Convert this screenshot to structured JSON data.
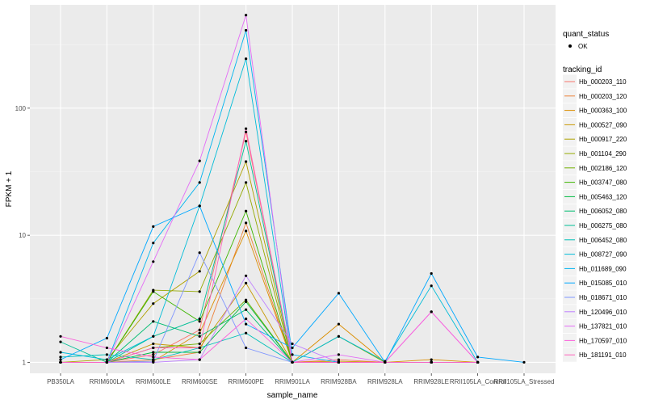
{
  "chart_data": {
    "type": "line",
    "xlabel": "sample_name",
    "ylabel": "FPKM + 1",
    "y_scale": "log10",
    "ylim": [
      0.82,
      650
    ],
    "y_ticks": [
      {
        "value": 1,
        "label": "1"
      },
      {
        "value": 10,
        "label": "10"
      },
      {
        "value": 100,
        "label": "100"
      }
    ],
    "categories": [
      "PB350LA",
      "RRIM600LA",
      "RRIM600LE",
      "RRIM600SE",
      "RRIM600PE",
      "RRIM901LA",
      "RRIM928BA",
      "RRIM928LA",
      "RRIM928LE",
      "RRII105LA_Control",
      "RRII105LA_Stressed"
    ],
    "quant_legend": {
      "title": "quant_status",
      "label": "OK"
    },
    "series_legend_title": "tracking_id",
    "series": [
      {
        "name": "Hb_000203_110",
        "color": "#F8766D",
        "values": [
          1.0,
          1.0,
          1.15,
          1.8,
          65,
          1.0,
          1.05,
          1.0,
          1.0,
          1.0,
          null
        ]
      },
      {
        "name": "Hb_000203_120",
        "color": "#EC8239",
        "values": [
          1.0,
          1.0,
          1.05,
          1.2,
          12.5,
          1.0,
          1.0,
          1.0,
          1.0,
          1.0,
          null
        ]
      },
      {
        "name": "Hb_000363_100",
        "color": "#DB8E00",
        "values": [
          1.0,
          1.0,
          1.02,
          1.7,
          10.8,
          1.0,
          2.0,
          1.0,
          1.05,
          1.0,
          null
        ]
      },
      {
        "name": "Hb_000527_090",
        "color": "#C79800",
        "values": [
          1.0,
          1.0,
          1.4,
          1.3,
          4.2,
          1.0,
          1.02,
          1.0,
          1.0,
          1.0,
          null
        ]
      },
      {
        "name": "Hb_000917_220",
        "color": "#AFA100",
        "values": [
          1.0,
          1.05,
          2.9,
          5.2,
          38,
          1.0,
          1.0,
          1.0,
          1.0,
          1.0,
          null
        ]
      },
      {
        "name": "Hb_001104_290",
        "color": "#94A900",
        "values": [
          1.0,
          1.0,
          3.7,
          3.6,
          26,
          1.0,
          1.0,
          1.0,
          1.0,
          1.0,
          null
        ]
      },
      {
        "name": "Hb_002186_120",
        "color": "#72B000",
        "values": [
          1.0,
          1.0,
          1.3,
          1.4,
          3.1,
          1.0,
          1.6,
          1.0,
          1.0,
          1.0,
          null
        ]
      },
      {
        "name": "Hb_003747_080",
        "color": "#3DB600",
        "values": [
          1.0,
          1.0,
          3.6,
          2.1,
          15.5,
          1.0,
          1.0,
          1.0,
          1.0,
          1.0,
          null
        ]
      },
      {
        "name": "Hb_005463_120",
        "color": "#00BA42",
        "values": [
          1.0,
          1.0,
          1.2,
          1.2,
          3.0,
          1.0,
          1.0,
          1.0,
          1.0,
          1.0,
          null
        ]
      },
      {
        "name": "Hb_006052_080",
        "color": "#00BD70",
        "values": [
          1.0,
          1.0,
          2.1,
          1.6,
          2.6,
          1.0,
          1.0,
          1.0,
          1.0,
          1.0,
          null
        ]
      },
      {
        "name": "Hb_006275_080",
        "color": "#00BF96",
        "values": [
          1.45,
          1.0,
          1.6,
          2.2,
          55,
          1.0,
          1.0,
          1.0,
          1.0,
          1.0,
          null
        ]
      },
      {
        "name": "Hb_006452_080",
        "color": "#00C0B8",
        "values": [
          1.1,
          1.15,
          1.05,
          1.3,
          1.7,
          1.0,
          1.0,
          1.0,
          1.0,
          1.0,
          null
        ]
      },
      {
        "name": "Hb_008727_090",
        "color": "#00BCD8",
        "values": [
          1.2,
          1.05,
          1.6,
          17,
          245,
          1.0,
          1.6,
          1.02,
          4.0,
          1.0,
          null
        ]
      },
      {
        "name": "Hb_011689_090",
        "color": "#00B4EF",
        "values": [
          1.0,
          1.0,
          8.7,
          26,
          410,
          1.15,
          1.0,
          1.0,
          1.0,
          1.0,
          null
        ]
      },
      {
        "name": "Hb_015085_010",
        "color": "#00A8FF",
        "values": [
          1.05,
          1.55,
          11.7,
          17,
          2.0,
          1.3,
          3.5,
          1.0,
          5.0,
          1.1,
          1.0
        ]
      },
      {
        "name": "Hb_018671_010",
        "color": "#7F96FF",
        "values": [
          1.0,
          1.0,
          1.02,
          7.3,
          1.3,
          1.0,
          1.0,
          1.0,
          1.0,
          1.0,
          null
        ]
      },
      {
        "name": "Hb_120496_010",
        "color": "#BE80FF",
        "values": [
          1.0,
          1.0,
          1.0,
          1.05,
          4.8,
          1.4,
          1.0,
          1.0,
          1.0,
          1.0,
          null
        ]
      },
      {
        "name": "Hb_137821_010",
        "color": "#E46CF6",
        "values": [
          1.0,
          1.0,
          6.2,
          38.5,
          540,
          1.0,
          1.15,
          1.0,
          2.5,
          1.0,
          null
        ]
      },
      {
        "name": "Hb_170597_010",
        "color": "#FA62DB",
        "values": [
          1.6,
          1.3,
          1.1,
          1.05,
          2.2,
          1.0,
          1.0,
          1.0,
          2.5,
          1.0,
          null
        ]
      },
      {
        "name": "Hb_181191_010",
        "color": "#FF62BC",
        "values": [
          1.0,
          1.0,
          1.3,
          1.3,
          69,
          1.0,
          1.0,
          1.0,
          1.0,
          1.0,
          null
        ]
      }
    ]
  }
}
